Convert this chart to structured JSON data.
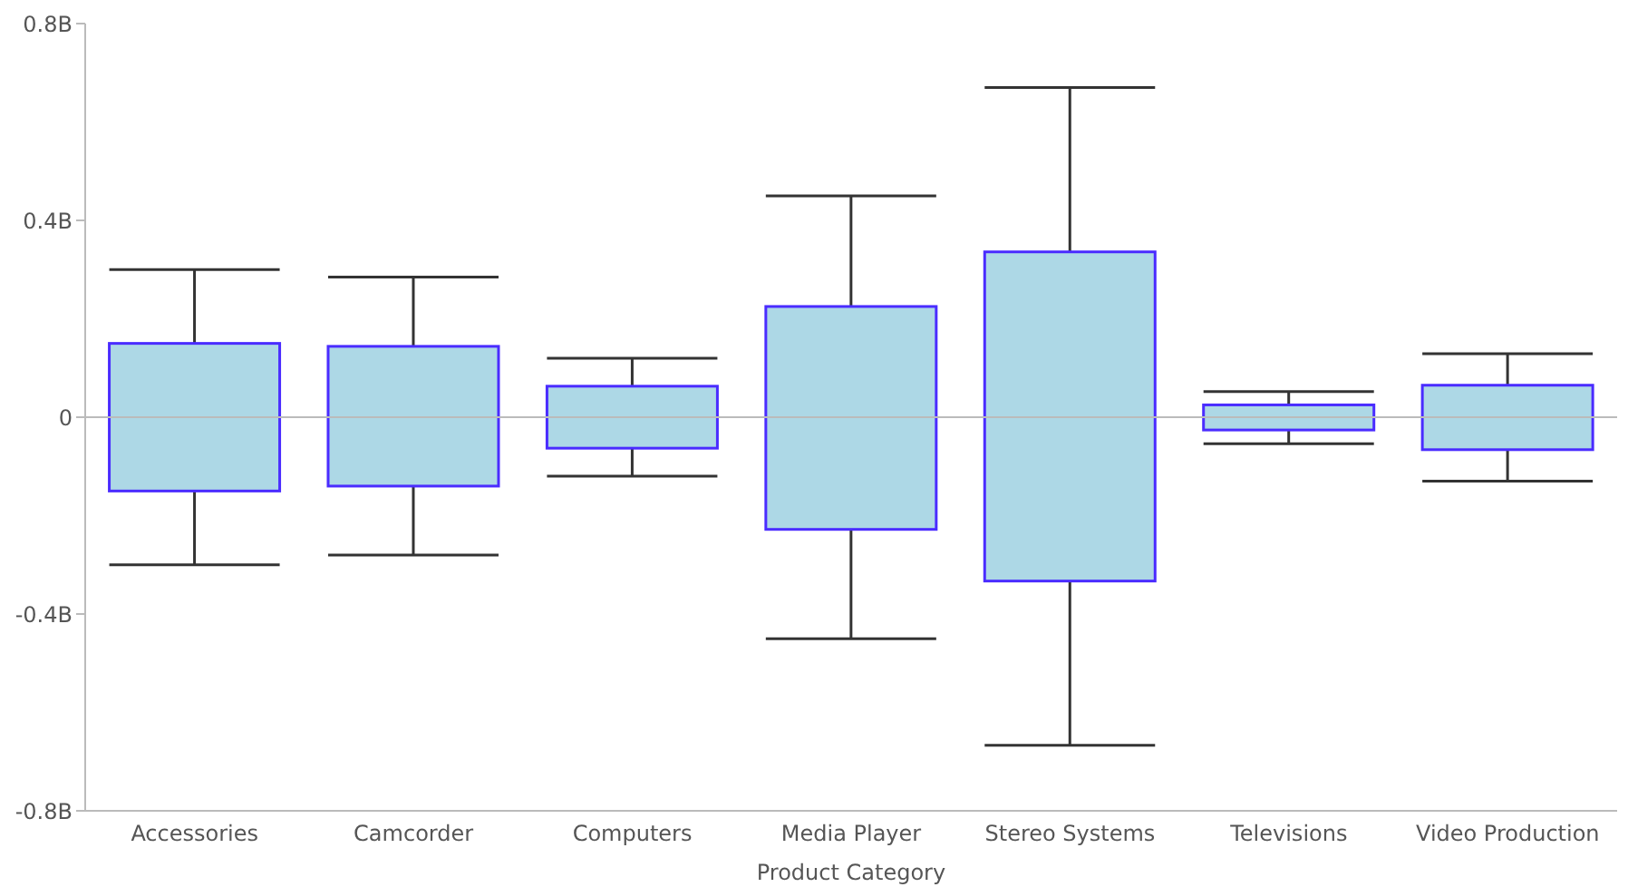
{
  "chart_data": {
    "type": "box",
    "xlabel": "Product Category",
    "categories": [
      "Accessories",
      "Camcorder",
      "Computers",
      "Media Player",
      "Stereo Systems",
      "Televisions",
      "Video Production"
    ],
    "series": [
      {
        "color": "#add8e6",
        "boxes": [
          {
            "low": -0.3,
            "q1": -0.15,
            "median": 0,
            "q3": 0.15,
            "high": 0.3
          },
          {
            "low": -0.28,
            "q1": -0.14,
            "median": 0,
            "q3": 0.144,
            "high": 0.285
          },
          {
            "low": -0.12,
            "q1": -0.063,
            "median": 0,
            "q3": 0.063,
            "high": 0.12
          },
          {
            "low": -0.45,
            "q1": -0.228,
            "median": 0,
            "q3": 0.225,
            "high": 0.45
          },
          {
            "low": -0.667,
            "q1": -0.333,
            "median": 0,
            "q3": 0.336,
            "high": 0.67
          },
          {
            "low": -0.054,
            "q1": -0.026,
            "median": 0,
            "q3": 0.025,
            "high": 0.052
          },
          {
            "low": -0.13,
            "q1": -0.066,
            "median": 0,
            "q3": 0.065,
            "high": 0.129
          }
        ]
      }
    ],
    "ylim": [
      -0.8,
      0.8
    ],
    "yticks": [
      {
        "value": -0.8,
        "label": "-0.8B"
      },
      {
        "value": -0.4,
        "label": "-0.4B"
      },
      {
        "value": 0,
        "label": "0"
      },
      {
        "value": 0.4,
        "label": "0.4B"
      },
      {
        "value": 0.8,
        "label": "0.8B"
      }
    ],
    "ref_lines": [
      {
        "axis": "y",
        "value": 0,
        "color": "#bbbbbb"
      }
    ],
    "grid": false,
    "legend": false
  }
}
